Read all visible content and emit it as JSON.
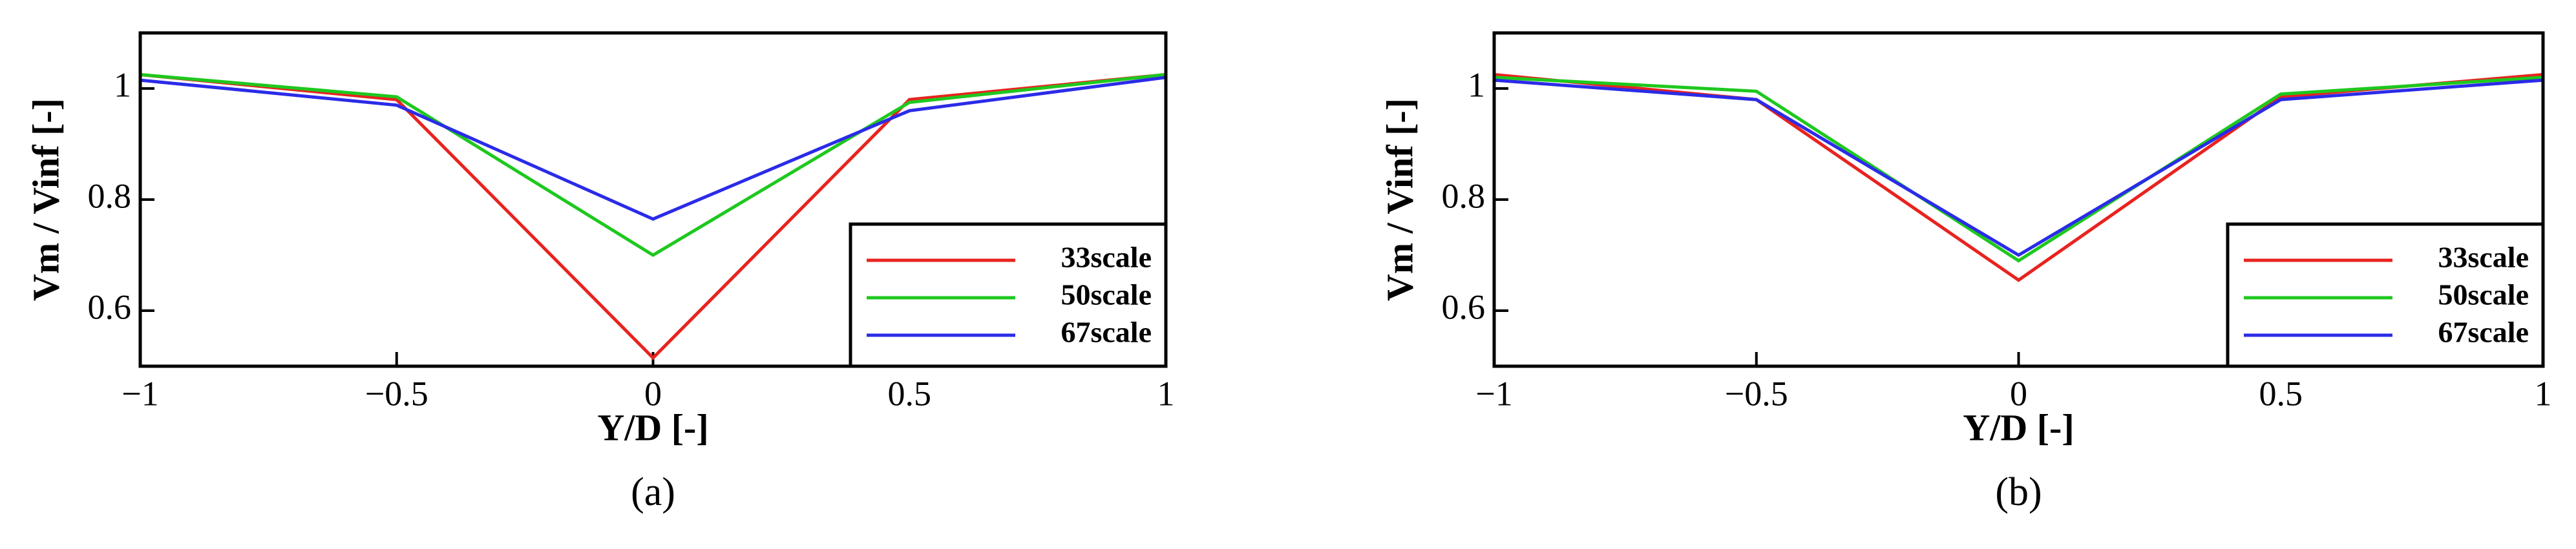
{
  "chart_data": [
    {
      "type": "line",
      "caption": "(a)",
      "x_label": "Y/D [-]",
      "y_label": "Vm / Vinf [-]",
      "x": [
        -1,
        -0.5,
        0,
        0.5,
        1
      ],
      "xlim": [
        -1,
        1
      ],
      "xticks": [
        {
          "value": -1,
          "label": "−1"
        },
        {
          "value": -0.5,
          "label": "−0.5"
        },
        0,
        0.5,
        1
      ],
      "ylim": [
        0.5,
        1.1
      ],
      "yticks": [
        0.6,
        0.8,
        1
      ],
      "legend": "lower right",
      "series": [
        {
          "name": "33scale",
          "color": "#e8231f",
          "values": [
            1.025,
            0.98,
            0.515,
            0.98,
            1.025
          ]
        },
        {
          "name": "50scale",
          "color": "#1ec81e",
          "values": [
            1.025,
            0.985,
            0.7,
            0.975,
            1.025
          ]
        },
        {
          "name": "67scale",
          "color": "#2b2be8",
          "values": [
            1.015,
            0.97,
            0.765,
            0.96,
            1.02
          ]
        }
      ]
    },
    {
      "type": "line",
      "caption": "(b)",
      "x_label": "Y/D [-]",
      "y_label": "Vm / Vinf [-]",
      "x": [
        -1,
        -0.5,
        0,
        0.5,
        1
      ],
      "xlim": [
        -1,
        1
      ],
      "xticks": [
        {
          "value": -1,
          "label": "−1"
        },
        {
          "value": -0.5,
          "label": "−0.5"
        },
        0,
        0.5,
        1
      ],
      "ylim": [
        0.5,
        1.1
      ],
      "yticks": [
        0.6,
        0.8,
        1
      ],
      "legend": "lower right",
      "series": [
        {
          "name": "33scale",
          "color": "#e8231f",
          "values": [
            1.025,
            0.98,
            0.655,
            0.985,
            1.025
          ]
        },
        {
          "name": "50scale",
          "color": "#1ec81e",
          "values": [
            1.02,
            0.995,
            0.69,
            0.99,
            1.02
          ]
        },
        {
          "name": "67scale",
          "color": "#2b2be8",
          "values": [
            1.015,
            0.98,
            0.7,
            0.98,
            1.015
          ]
        }
      ]
    }
  ]
}
